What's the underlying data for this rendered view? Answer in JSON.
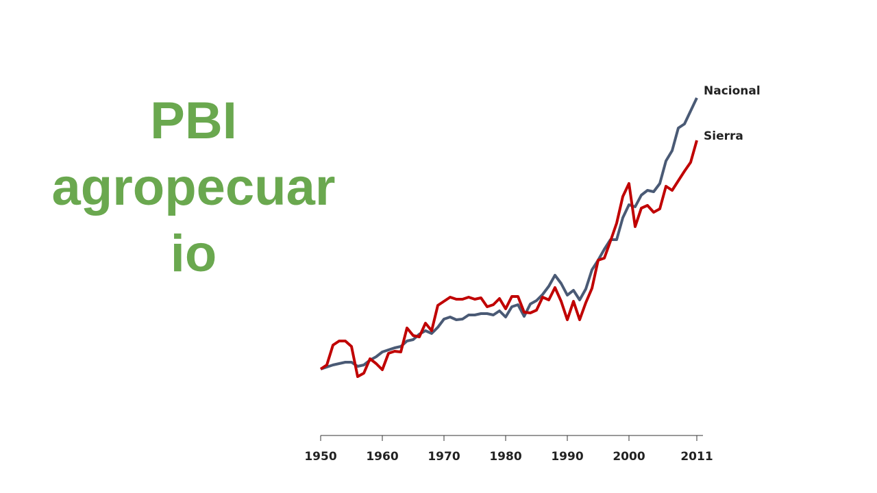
{
  "chart_data": {
    "type": "line",
    "title": "PBI agropecuario",
    "x": [
      1950,
      1951,
      1952,
      1953,
      1954,
      1955,
      1956,
      1957,
      1958,
      1959,
      1960,
      1961,
      1962,
      1963,
      1964,
      1965,
      1966,
      1967,
      1968,
      1969,
      1970,
      1971,
      1972,
      1973,
      1974,
      1975,
      1976,
      1977,
      1978,
      1979,
      1980,
      1981,
      1982,
      1983,
      1984,
      1985,
      1986,
      1987,
      1988,
      1989,
      1990,
      1991,
      1992,
      1993,
      1994,
      1995,
      1996,
      1997,
      1998,
      1999,
      2000,
      2001,
      2002,
      2003,
      2004,
      2005,
      2006,
      2007,
      2008,
      2009,
      2010,
      2011
    ],
    "series": [
      {
        "name": "Nacional",
        "color": "#4a5a75",
        "values": [
          100,
          101.5,
          103,
          104,
          105,
          105,
          102,
          103,
          106.5,
          109,
          112.5,
          114,
          115.5,
          116.5,
          120.5,
          121.5,
          125.5,
          128,
          126,
          130.5,
          136.5,
          138,
          136,
          136.5,
          139.5,
          139.5,
          140.5,
          140.5,
          139.5,
          142.5,
          138,
          145.5,
          147,
          138.5,
          147.5,
          150,
          154.5,
          160.5,
          168.5,
          162.5,
          154,
          157.5,
          150.5,
          158.5,
          172.5,
          179.5,
          187.5,
          194.5,
          194.5,
          210.5,
          220,
          218.5,
          227,
          230.5,
          229.5,
          235.5,
          252,
          259.5,
          276,
          279,
          288.5,
          298
        ]
      },
      {
        "name": "Sierra",
        "color": "#c00000",
        "values": [
          100,
          103,
          117.5,
          120.5,
          120.5,
          116.5,
          94.5,
          97,
          107.5,
          104,
          99.5,
          111.5,
          113,
          112.5,
          130,
          124.5,
          123.5,
          133.5,
          128,
          146.5,
          149.5,
          152.5,
          151,
          151,
          152.5,
          151,
          152,
          145.5,
          147,
          151.5,
          144,
          153,
          153,
          141.5,
          141,
          143,
          152.5,
          150.5,
          159.5,
          149.5,
          136,
          149.5,
          136,
          148.5,
          159,
          179.5,
          181,
          193.5,
          206.5,
          226,
          235.5,
          204,
          217.5,
          219.5,
          214.5,
          217,
          233.5,
          230.5,
          237.5,
          244.5,
          251,
          267
        ]
      }
    ],
    "xlim": [
      1950,
      2012
    ],
    "xticks": [
      1950,
      1960,
      1970,
      1980,
      1990,
      2000,
      2011
    ]
  }
}
